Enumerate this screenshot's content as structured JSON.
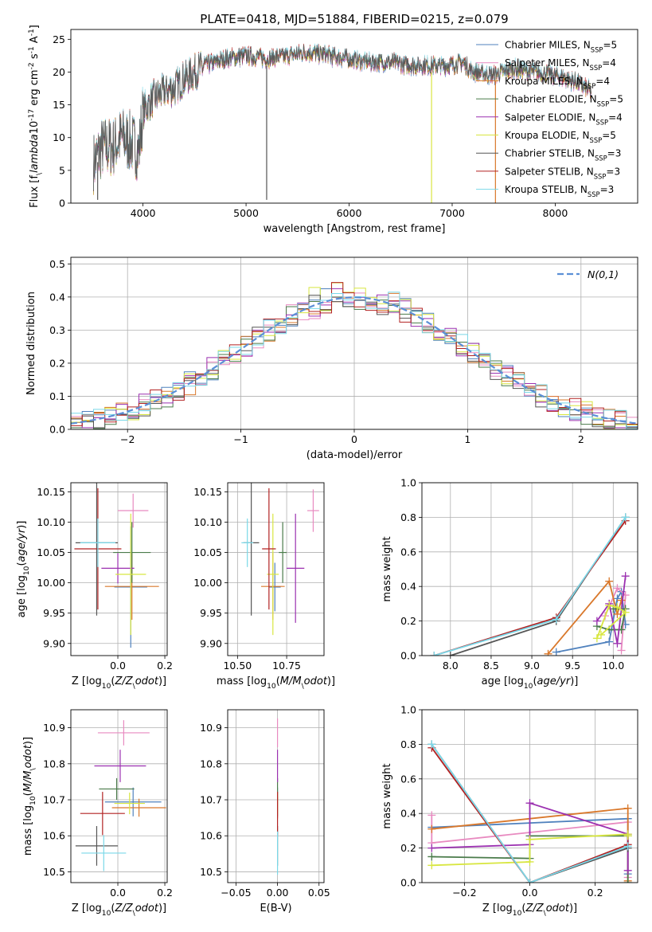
{
  "figure_title": "PLATE=0418, MJD=51884, FIBERID=0215, z=0.079",
  "colors": [
    "#4f81bd",
    "#e88ac0",
    "#d9782b",
    "#4a7b4a",
    "#9b30b0",
    "#d8e640",
    "#555555",
    "#b22222",
    "#7ad8e8"
  ],
  "gauss_color": "#5b8fd6",
  "chart_data": [
    {
      "id": "spectrum",
      "type": "line",
      "title": "PLATE=0418, MJD=51884, FIBERID=0215, z=0.079",
      "xlabel": "wavelength [Angstrom, rest frame]",
      "ylabel": "Flux [f$_\\lambda$10$^{-17}$ erg cm$^{-2}$ s$^{-1}$ A$^{-1}$]",
      "xlim": [
        3300,
        8800
      ],
      "ylim": [
        0,
        26.5
      ],
      "xticks": [
        4000,
        5000,
        6000,
        7000,
        8000
      ],
      "yticks": [
        0,
        5,
        10,
        15,
        20,
        25
      ],
      "grid": false,
      "legend_position": "upper right",
      "continuum_knots": [
        [
          3520,
          6
        ],
        [
          3600,
          8.5
        ],
        [
          3700,
          8.5
        ],
        [
          3800,
          10
        ],
        [
          3900,
          9
        ],
        [
          3960,
          8
        ],
        [
          4000,
          14
        ],
        [
          4100,
          16
        ],
        [
          4200,
          17
        ],
        [
          4300,
          17.5
        ],
        [
          4400,
          19
        ],
        [
          4500,
          20
        ],
        [
          4600,
          21
        ],
        [
          4700,
          21.5
        ],
        [
          4800,
          22
        ],
        [
          5000,
          22.5
        ],
        [
          5200,
          22
        ],
        [
          5400,
          22.5
        ],
        [
          5600,
          23
        ],
        [
          5800,
          22.5
        ],
        [
          6000,
          22
        ],
        [
          6200,
          21.5
        ],
        [
          6400,
          21.5
        ],
        [
          6600,
          21
        ],
        [
          6800,
          21
        ],
        [
          7000,
          21
        ],
        [
          7100,
          21.5
        ],
        [
          7200,
          20
        ],
        [
          7400,
          19.5
        ],
        [
          7600,
          20.5
        ],
        [
          7800,
          20
        ],
        [
          8000,
          19.5
        ],
        [
          8200,
          18.5
        ],
        [
          8350,
          17
        ]
      ],
      "series": [
        {
          "name": "Chabrier MILES, N$_{SSP}$=5"
        },
        {
          "name": "Salpeter MILES, N$_{SSP}$=4"
        },
        {
          "name": "Kroupa MILES, N$_{SSP}$=4"
        },
        {
          "name": "Chabrier ELODIE, N$_{SSP}$=5"
        },
        {
          "name": "Salpeter ELODIE, N$_{SSP}$=4"
        },
        {
          "name": "Kroupa ELODIE, N$_{SSP}$=5"
        },
        {
          "name": "Chabrier STELIB, N$_{SSP}$=3"
        },
        {
          "name": "Salpeter STELIB, N$_{SSP}$=3"
        },
        {
          "name": "Kroupa STELIB, N$_{SSP}$=3"
        }
      ]
    },
    {
      "id": "residuals",
      "type": "area",
      "xlabel": "(data-model)/error",
      "ylabel": "Normed distribution",
      "xlim": [
        -2.5,
        2.5
      ],
      "ylim": [
        0,
        0.52
      ],
      "xticks": [
        -2,
        -1,
        0,
        1,
        2
      ],
      "yticks": [
        0.0,
        0.1,
        0.2,
        0.3,
        0.4,
        0.5
      ],
      "grid": true,
      "legend_position": "upper right",
      "legend": "$\\mathcal{N}(0,1)$",
      "bin_width": 0.1,
      "reference_curve": "gaussian mean 0 sigma 1"
    },
    {
      "id": "age_vs_Z",
      "type": "scatter",
      "xlabel": "Z [log$_{10}$($Z/Z_\\odot$)]",
      "ylabel": "age  [log$_{10}$($age/yr$)]",
      "xlim": [
        -0.2,
        0.21
      ],
      "ylim": [
        9.88,
        10.165
      ],
      "xticks": [
        0.0,
        0.2
      ],
      "yticks": [
        9.9,
        9.95,
        10.0,
        10.05,
        10.1,
        10.15
      ],
      "grid": true,
      "points": [
        {
          "x": 0.055,
          "y": 9.993,
          "xerr": 0.07,
          "yerr": 0.1
        },
        {
          "x": 0.065,
          "y": 10.119,
          "xerr": 0.065,
          "yerr": 0.028
        },
        {
          "x": 0.06,
          "y": 9.994,
          "xerr": 0.115,
          "yerr": 0.055
        },
        {
          "x": 0.06,
          "y": 10.05,
          "xerr": 0.08,
          "yerr": 0.05
        },
        {
          "x": 0.0,
          "y": 10.024,
          "xerr": 0.07,
          "yerr": 0.025
        },
        {
          "x": 0.055,
          "y": 10.014,
          "xerr": 0.065,
          "yerr": 0.1
        },
        {
          "x": -0.09,
          "y": 10.066,
          "xerr": 0.09,
          "yerr": 0.12
        },
        {
          "x": -0.085,
          "y": 10.056,
          "xerr": 0.1,
          "yerr": 0.1
        },
        {
          "x": -0.085,
          "y": 10.066,
          "xerr": 0.075,
          "yerr": 0.04
        }
      ]
    },
    {
      "id": "age_vs_mass",
      "type": "scatter",
      "xlabel": "mass [log$_{10}$($M/M_\\odot$)]",
      "ylabel": "",
      "xlim": [
        10.45,
        10.94
      ],
      "ylim": [
        9.88,
        10.165
      ],
      "xticks": [
        10.5,
        10.75
      ],
      "yticks": [
        9.9,
        9.95,
        10.0,
        10.05,
        10.1,
        10.15
      ],
      "grid": true,
      "points": [
        {
          "x": 10.69,
          "y": 9.993,
          "xerr": 0.03,
          "yerr": 0.04
        },
        {
          "x": 10.885,
          "y": 10.119,
          "xerr": 0.03,
          "yerr": 0.035
        },
        {
          "x": 10.68,
          "y": 9.994,
          "xerr": 0.06,
          "yerr": 0.055
        },
        {
          "x": 10.73,
          "y": 10.05,
          "xerr": 0.02,
          "yerr": 0.05
        },
        {
          "x": 10.795,
          "y": 10.024,
          "xerr": 0.045,
          "yerr": 0.09
        },
        {
          "x": 10.68,
          "y": 10.014,
          "xerr": 0.03,
          "yerr": 0.1
        },
        {
          "x": 10.57,
          "y": 10.066,
          "xerr": 0.04,
          "yerr": 0.12
        },
        {
          "x": 10.66,
          "y": 10.056,
          "xerr": 0.035,
          "yerr": 0.1
        },
        {
          "x": 10.55,
          "y": 10.066,
          "xerr": 0.03,
          "yerr": 0.04
        }
      ]
    },
    {
      "id": "weight_vs_age",
      "type": "line",
      "xlabel": "age  [log$_{10}$($age/yr$)]",
      "ylabel": "mass weight",
      "xlim": [
        7.65,
        10.3
      ],
      "ylim": [
        0,
        1.0
      ],
      "xticks": [
        8.0,
        8.5,
        9.0,
        9.5,
        10.0
      ],
      "yticks": [
        0.0,
        0.2,
        0.4,
        0.6,
        0.8,
        1.0
      ],
      "grid": true,
      "series": [
        {
          "x": [
            9.3,
            9.95,
            10.05,
            10.1,
            10.15
          ],
          "y": [
            0.02,
            0.08,
            0.33,
            0.37,
            0.18
          ]
        },
        {
          "x": [
            9.9,
            10.05,
            10.15,
            10.1
          ],
          "y": [
            0.23,
            0.39,
            0.35,
            0.03
          ]
        },
        {
          "x": [
            9.2,
            9.95,
            10.05,
            10.1
          ],
          "y": [
            0.01,
            0.43,
            0.24,
            0.32
          ]
        },
        {
          "x": [
            9.8,
            9.95,
            10.1,
            10.15,
            10.0
          ],
          "y": [
            0.17,
            0.15,
            0.15,
            0.27,
            0.27
          ]
        },
        {
          "x": [
            9.8,
            9.95,
            10.05,
            10.15
          ],
          "y": [
            0.2,
            0.3,
            0.07,
            0.46
          ]
        },
        {
          "x": [
            9.8,
            9.95,
            10.05,
            10.15,
            9.85
          ],
          "y": [
            0.1,
            0.29,
            0.28,
            0.25,
            0.12
          ]
        },
        {
          "x": [
            8.0,
            9.3,
            10.15
          ],
          "y": [
            0.0,
            0.2,
            0.8
          ]
        },
        {
          "x": [
            7.8,
            9.3,
            10.15
          ],
          "y": [
            0.0,
            0.22,
            0.78
          ]
        },
        {
          "x": [
            7.8,
            9.3,
            10.15
          ],
          "y": [
            0.0,
            0.21,
            0.8
          ]
        }
      ]
    },
    {
      "id": "mass_vs_Z",
      "type": "scatter",
      "xlabel": "Z [log$_{10}$($Z/Z_\\odot$)]",
      "ylabel": "mass [log$_{10}$($M/M_\\odot$)]",
      "xlim": [
        -0.2,
        0.21
      ],
      "ylim": [
        10.47,
        10.95
      ],
      "xticks": [
        0.0,
        0.2
      ],
      "yticks": [
        10.5,
        10.6,
        10.7,
        10.8,
        10.9
      ],
      "grid": true,
      "points": [
        {
          "x": 0.065,
          "y": 10.694,
          "xerr": 0.12,
          "yerr": 0.04
        },
        {
          "x": 0.025,
          "y": 10.886,
          "xerr": 0.11,
          "yerr": 0.035
        },
        {
          "x": 0.09,
          "y": 10.678,
          "xerr": 0.115,
          "yerr": 0.025
        },
        {
          "x": -0.005,
          "y": 10.73,
          "xerr": 0.075,
          "yerr": 0.03
        },
        {
          "x": 0.01,
          "y": 10.794,
          "xerr": 0.11,
          "yerr": 0.045
        },
        {
          "x": 0.05,
          "y": 10.69,
          "xerr": 0.065,
          "yerr": 0.03
        },
        {
          "x": -0.09,
          "y": 10.572,
          "xerr": 0.09,
          "yerr": 0.055
        },
        {
          "x": -0.065,
          "y": 10.662,
          "xerr": 0.095,
          "yerr": 0.06
        },
        {
          "x": -0.06,
          "y": 10.552,
          "xerr": 0.095,
          "yerr": 0.05
        }
      ]
    },
    {
      "id": "mass_vs_ebv",
      "type": "scatter",
      "xlabel": "E(B-V)",
      "ylabel": "",
      "xlim": [
        -0.06,
        0.056
      ],
      "ylim": [
        10.47,
        10.95
      ],
      "xticks": [
        -0.05,
        0.0,
        0.05
      ],
      "yticks": [
        10.5,
        10.6,
        10.7,
        10.8,
        10.9
      ],
      "grid": true,
      "points": [
        {
          "x": 0.0,
          "y": 10.694,
          "xerr": 0,
          "yerr": 0.04
        },
        {
          "x": 0.0,
          "y": 10.886,
          "xerr": 0,
          "yerr": 0.04
        },
        {
          "x": 0.0,
          "y": 10.678,
          "xerr": 0,
          "yerr": 0.03
        },
        {
          "x": 0.0,
          "y": 10.73,
          "xerr": 0,
          "yerr": 0.03
        },
        {
          "x": 0.0,
          "y": 10.794,
          "xerr": 0,
          "yerr": 0.045
        },
        {
          "x": 0.0,
          "y": 10.69,
          "xerr": 0,
          "yerr": 0.03
        },
        {
          "x": 0.0,
          "y": 10.572,
          "xerr": 0,
          "yerr": 0.055
        },
        {
          "x": 0.0,
          "y": 10.662,
          "xerr": 0,
          "yerr": 0.06
        },
        {
          "x": 0.0,
          "y": 10.552,
          "xerr": 0,
          "yerr": 0.06
        }
      ]
    },
    {
      "id": "weight_vs_Z",
      "type": "line",
      "xlabel": "Z [log$_{10}$($Z/Z_\\odot$)]",
      "ylabel": "mass weight",
      "xlim": [
        -0.33,
        0.33
      ],
      "ylim": [
        0,
        1.0
      ],
      "xticks": [
        -0.2,
        0.0,
        0.2
      ],
      "yticks": [
        0.0,
        0.2,
        0.4,
        0.6,
        0.8,
        1.0
      ],
      "grid": true,
      "series": [
        {
          "x": [
            -0.3,
            0.3,
            0.3
          ],
          "y": [
            0.32,
            0.37,
            0.05
          ]
        },
        {
          "x": [
            -0.3,
            -0.3,
            0.3,
            0.3
          ],
          "y": [
            0.39,
            0.23,
            0.35,
            0.03
          ]
        },
        {
          "x": [
            -0.3,
            0.3,
            0.3
          ],
          "y": [
            0.31,
            0.43,
            0.01
          ]
        },
        {
          "x": [
            -0.3,
            0.0,
            0.0,
            0.3,
            0.3
          ],
          "y": [
            0.15,
            0.14,
            0.27,
            0.27,
            0.0
          ]
        },
        {
          "x": [
            -0.3,
            0.0,
            0.0,
            0.3,
            0.3
          ],
          "y": [
            0.2,
            0.22,
            0.46,
            0.28,
            0.07
          ]
        },
        {
          "x": [
            -0.3,
            0.0,
            0.0,
            0.3,
            0.3
          ],
          "y": [
            0.1,
            0.12,
            0.25,
            0.28,
            0.27
          ]
        },
        {
          "x": [
            -0.3,
            0.0,
            0.3
          ],
          "y": [
            0.8,
            0.0,
            0.2
          ]
        },
        {
          "x": [
            -0.3,
            0.0,
            0.3
          ],
          "y": [
            0.78,
            0.0,
            0.22
          ]
        },
        {
          "x": [
            -0.3,
            0.0,
            0.3
          ],
          "y": [
            0.8,
            0.0,
            0.21
          ]
        }
      ]
    }
  ]
}
